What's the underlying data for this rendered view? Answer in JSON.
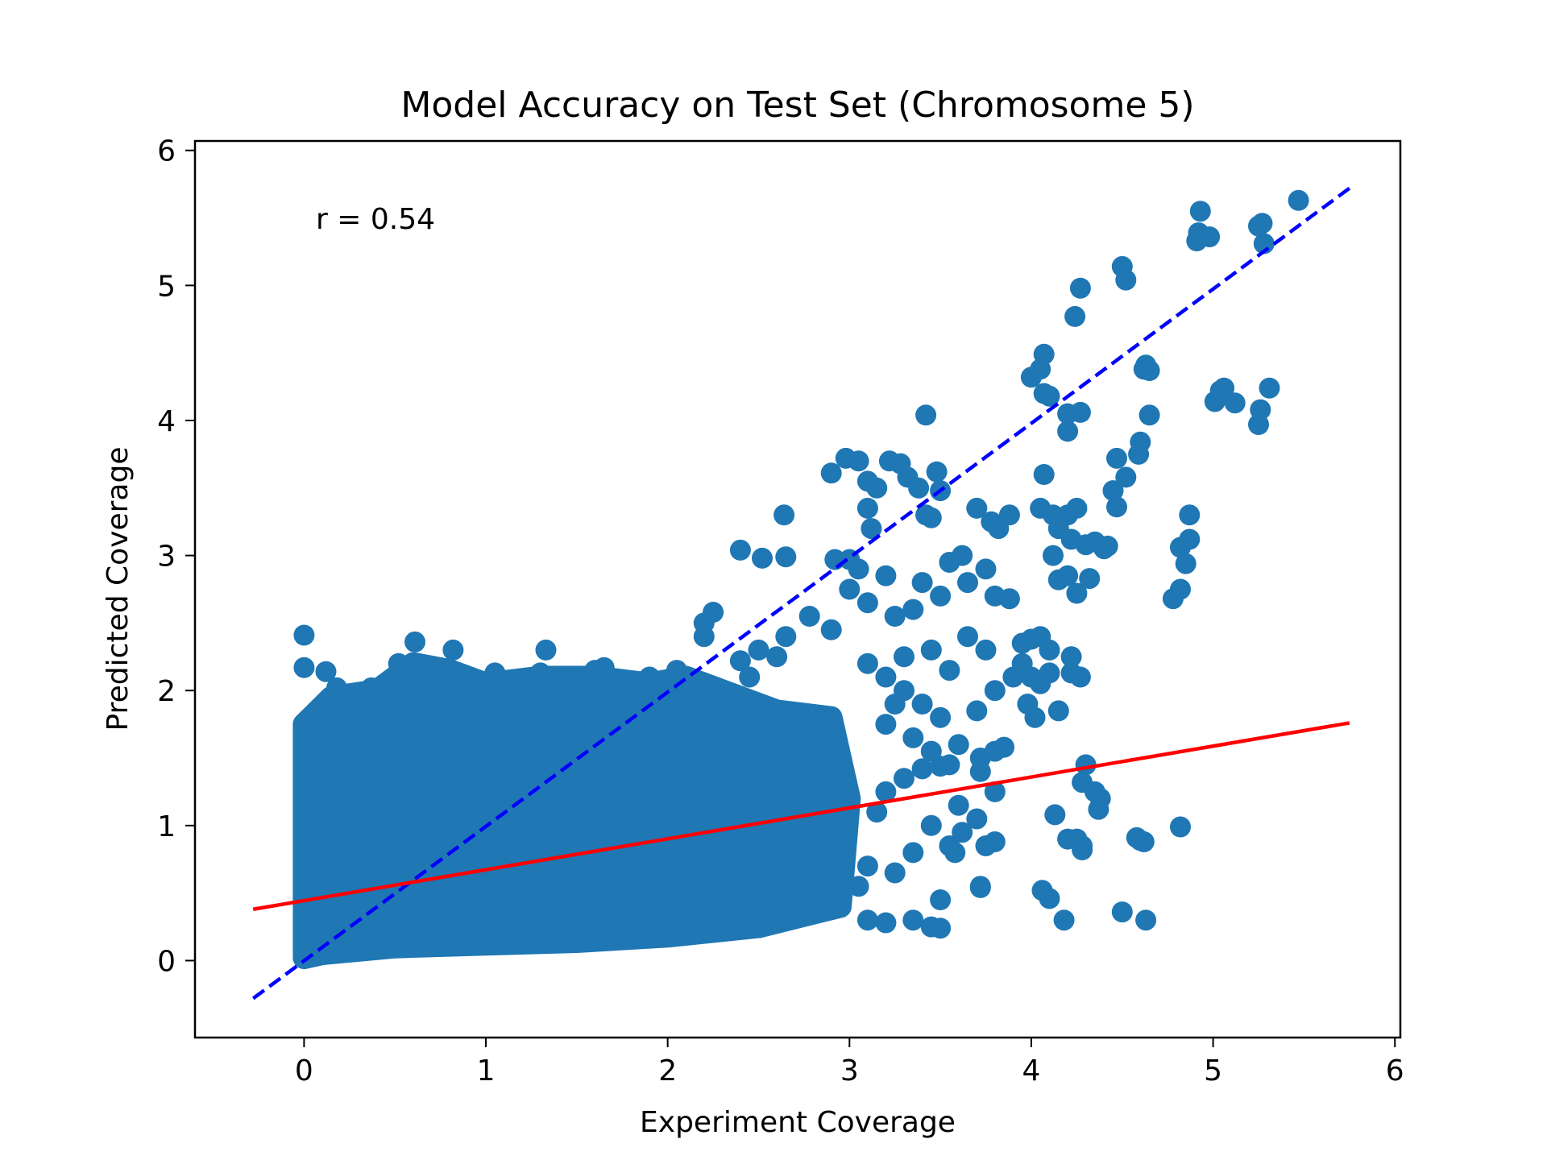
{
  "chart_data": {
    "type": "scatter",
    "title": "Model Accuracy on Test Set (Chromosome 5)",
    "xlabel": "Experiment Coverage",
    "ylabel": "Predicted Coverage",
    "xlim": [
      -0.6,
      6.03
    ],
    "ylim": [
      -0.57,
      6.07
    ],
    "xticks": [
      0,
      1,
      2,
      3,
      4,
      5,
      6
    ],
    "yticks": [
      0,
      1,
      2,
      3,
      4,
      5,
      6
    ],
    "grid": false,
    "annotation": "r = 0.54",
    "colors": {
      "points": "#1f77b4",
      "identity_line": "#0000ff",
      "fit_line": "#ff0000"
    },
    "lines": [
      {
        "kind": "identity",
        "style": "dashed",
        "x": [
          -0.28,
          5.75
        ],
        "y": [
          -0.28,
          5.72
        ]
      },
      {
        "kind": "fit",
        "style": "solid",
        "x": [
          -0.28,
          5.75
        ],
        "y": [
          0.38,
          1.76
        ]
      }
    ],
    "dense_region": {
      "description": "saturated mass of points",
      "polygon": [
        [
          0.0,
          0.02
        ],
        [
          0.0,
          1.75
        ],
        [
          0.15,
          1.95
        ],
        [
          0.4,
          2.0
        ],
        [
          0.6,
          2.2
        ],
        [
          0.8,
          2.15
        ],
        [
          1.0,
          2.05
        ],
        [
          1.3,
          2.1
        ],
        [
          1.6,
          2.1
        ],
        [
          1.9,
          2.05
        ],
        [
          2.1,
          2.1
        ],
        [
          2.3,
          2.0
        ],
        [
          2.6,
          1.85
        ],
        [
          2.9,
          1.8
        ],
        [
          3.0,
          1.2
        ],
        [
          2.95,
          0.4
        ],
        [
          2.5,
          0.25
        ],
        [
          2.0,
          0.18
        ],
        [
          1.5,
          0.14
        ],
        [
          1.0,
          0.12
        ],
        [
          0.5,
          0.1
        ],
        [
          0.1,
          0.05
        ]
      ]
    },
    "scatter_points": [
      [
        0.0,
        2.41
      ],
      [
        0.0,
        2.17
      ],
      [
        0.12,
        2.14
      ],
      [
        0.18,
        2.02
      ],
      [
        0.22,
        1.96
      ],
      [
        0.37,
        2.02
      ],
      [
        0.52,
        2.2
      ],
      [
        0.61,
        2.36
      ],
      [
        0.67,
        2.18
      ],
      [
        0.73,
        2.15
      ],
      [
        0.82,
        2.3
      ],
      [
        0.93,
        2.05
      ],
      [
        1.05,
        2.13
      ],
      [
        1.18,
        2.07
      ],
      [
        1.33,
        2.3
      ],
      [
        1.3,
        2.13
      ],
      [
        1.6,
        2.15
      ],
      [
        1.65,
        2.17
      ],
      [
        1.9,
        2.1
      ],
      [
        2.05,
        2.15
      ],
      [
        2.2,
        2.4
      ],
      [
        2.2,
        2.5
      ],
      [
        2.25,
        2.58
      ],
      [
        2.4,
        2.22
      ],
      [
        2.5,
        2.3
      ],
      [
        2.6,
        2.25
      ],
      [
        2.65,
        2.4
      ],
      [
        2.78,
        2.55
      ],
      [
        2.9,
        2.45
      ],
      [
        2.45,
        2.1
      ],
      [
        2.4,
        3.04
      ],
      [
        2.52,
        2.98
      ],
      [
        2.65,
        2.99
      ],
      [
        2.64,
        3.3
      ],
      [
        2.9,
        3.61
      ],
      [
        2.92,
        2.97
      ],
      [
        3.0,
        2.97
      ],
      [
        3.05,
        2.9
      ],
      [
        3.0,
        2.75
      ],
      [
        3.1,
        2.65
      ],
      [
        2.98,
        3.72
      ],
      [
        3.05,
        3.7
      ],
      [
        3.1,
        3.55
      ],
      [
        3.1,
        3.35
      ],
      [
        3.12,
        3.2
      ],
      [
        3.15,
        3.5
      ],
      [
        3.22,
        3.7
      ],
      [
        3.28,
        3.68
      ],
      [
        3.32,
        3.58
      ],
      [
        3.38,
        3.5
      ],
      [
        3.42,
        3.3
      ],
      [
        3.42,
        4.04
      ],
      [
        3.48,
        3.62
      ],
      [
        3.5,
        3.48
      ],
      [
        3.45,
        3.28
      ],
      [
        3.2,
        2.85
      ],
      [
        3.25,
        2.55
      ],
      [
        3.35,
        2.6
      ],
      [
        3.4,
        2.8
      ],
      [
        3.5,
        2.7
      ],
      [
        3.55,
        2.95
      ],
      [
        3.65,
        2.8
      ],
      [
        3.75,
        2.9
      ],
      [
        3.8,
        2.7
      ],
      [
        3.88,
        2.68
      ],
      [
        3.62,
        3.0
      ],
      [
        3.7,
        3.35
      ],
      [
        3.78,
        3.25
      ],
      [
        3.82,
        3.2
      ],
      [
        3.88,
        3.3
      ],
      [
        3.65,
        2.4
      ],
      [
        3.75,
        2.3
      ],
      [
        3.3,
        2.25
      ],
      [
        3.45,
        2.3
      ],
      [
        3.55,
        2.15
      ],
      [
        3.2,
        2.1
      ],
      [
        3.1,
        2.2
      ],
      [
        3.3,
        2.0
      ],
      [
        3.4,
        1.9
      ],
      [
        3.5,
        1.8
      ],
      [
        3.25,
        1.9
      ],
      [
        3.2,
        1.75
      ],
      [
        3.35,
        1.65
      ],
      [
        3.45,
        1.55
      ],
      [
        3.55,
        1.45
      ],
      [
        3.6,
        1.6
      ],
      [
        3.72,
        1.5
      ],
      [
        3.8,
        1.55
      ],
      [
        3.85,
        1.58
      ],
      [
        3.7,
        1.85
      ],
      [
        3.8,
        2.0
      ],
      [
        3.9,
        2.1
      ],
      [
        3.95,
        2.2
      ],
      [
        3.72,
        1.4
      ],
      [
        3.8,
        1.25
      ],
      [
        3.7,
        1.05
      ],
      [
        3.62,
        0.95
      ],
      [
        3.55,
        0.85
      ],
      [
        3.58,
        0.8
      ],
      [
        3.75,
        0.85
      ],
      [
        3.8,
        0.88
      ],
      [
        3.72,
        0.55
      ],
      [
        3.5,
        0.45
      ],
      [
        3.45,
        0.25
      ],
      [
        3.5,
        0.24
      ],
      [
        3.35,
        0.3
      ],
      [
        3.2,
        0.28
      ],
      [
        3.1,
        0.3
      ],
      [
        3.05,
        0.55
      ],
      [
        3.1,
        0.7
      ],
      [
        3.25,
        0.65
      ],
      [
        3.35,
        0.8
      ],
      [
        3.15,
        1.1
      ],
      [
        3.2,
        1.25
      ],
      [
        3.3,
        1.35
      ],
      [
        3.45,
        1.0
      ],
      [
        3.6,
        1.15
      ],
      [
        4.0,
        4.32
      ],
      [
        4.05,
        4.38
      ],
      [
        4.07,
        4.49
      ],
      [
        4.07,
        4.2
      ],
      [
        4.1,
        4.18
      ],
      [
        4.24,
        4.77
      ],
      [
        4.27,
        4.98
      ],
      [
        4.2,
        4.05
      ],
      [
        4.2,
        3.92
      ],
      [
        4.27,
        4.06
      ],
      [
        4.5,
        5.14
      ],
      [
        4.52,
        5.04
      ],
      [
        4.62,
        4.38
      ],
      [
        4.63,
        4.41
      ],
      [
        4.65,
        4.37
      ],
      [
        4.65,
        4.04
      ],
      [
        4.6,
        3.84
      ],
      [
        4.59,
        3.75
      ],
      [
        4.52,
        3.58
      ],
      [
        4.47,
        3.72
      ],
      [
        4.45,
        3.48
      ],
      [
        4.47,
        3.36
      ],
      [
        4.93,
        5.55
      ],
      [
        4.92,
        5.39
      ],
      [
        4.91,
        5.33
      ],
      [
        4.98,
        5.36
      ],
      [
        5.25,
        5.44
      ],
      [
        5.27,
        5.46
      ],
      [
        5.28,
        5.31
      ],
      [
        5.47,
        5.63
      ],
      [
        5.01,
        4.14
      ],
      [
        5.06,
        4.24
      ],
      [
        5.04,
        4.22
      ],
      [
        5.12,
        4.13
      ],
      [
        5.26,
        4.08
      ],
      [
        5.25,
        3.97
      ],
      [
        5.31,
        4.24
      ],
      [
        4.82,
        3.06
      ],
      [
        4.87,
        3.12
      ],
      [
        4.85,
        2.94
      ],
      [
        4.87,
        3.3
      ],
      [
        4.82,
        2.75
      ],
      [
        4.78,
        2.68
      ],
      [
        4.07,
        3.6
      ],
      [
        4.05,
        3.35
      ],
      [
        4.12,
        3.3
      ],
      [
        4.15,
        3.2
      ],
      [
        4.2,
        3.3
      ],
      [
        4.25,
        3.35
      ],
      [
        4.22,
        3.12
      ],
      [
        4.3,
        3.08
      ],
      [
        4.35,
        3.1
      ],
      [
        4.4,
        3.05
      ],
      [
        4.42,
        3.07
      ],
      [
        4.12,
        3.0
      ],
      [
        4.15,
        2.82
      ],
      [
        4.2,
        2.85
      ],
      [
        4.25,
        2.72
      ],
      [
        4.32,
        2.83
      ],
      [
        4.0,
        2.38
      ],
      [
        4.05,
        2.4
      ],
      [
        4.1,
        2.3
      ],
      [
        3.95,
        2.35
      ],
      [
        4.22,
        2.25
      ],
      [
        4.22,
        2.13
      ],
      [
        4.27,
        2.1
      ],
      [
        4.1,
        2.13
      ],
      [
        4.05,
        2.05
      ],
      [
        4.0,
        2.1
      ],
      [
        3.98,
        1.9
      ],
      [
        4.02,
        1.8
      ],
      [
        4.15,
        1.85
      ],
      [
        4.3,
        1.45
      ],
      [
        4.28,
        1.32
      ],
      [
        4.35,
        1.25
      ],
      [
        4.38,
        1.2
      ],
      [
        4.37,
        1.12
      ],
      [
        4.13,
        1.08
      ],
      [
        4.2,
        0.9
      ],
      [
        4.25,
        0.9
      ],
      [
        4.28,
        0.85
      ],
      [
        4.28,
        0.82
      ],
      [
        4.58,
        0.91
      ],
      [
        4.6,
        0.89
      ],
      [
        4.62,
        0.88
      ],
      [
        4.82,
        0.99
      ],
      [
        4.06,
        0.52
      ],
      [
        4.1,
        0.46
      ],
      [
        4.18,
        0.3
      ],
      [
        4.5,
        0.36
      ],
      [
        4.63,
        0.3
      ],
      [
        3.72,
        0.54
      ],
      [
        3.4,
        1.42
      ],
      [
        3.5,
        1.44
      ]
    ]
  }
}
